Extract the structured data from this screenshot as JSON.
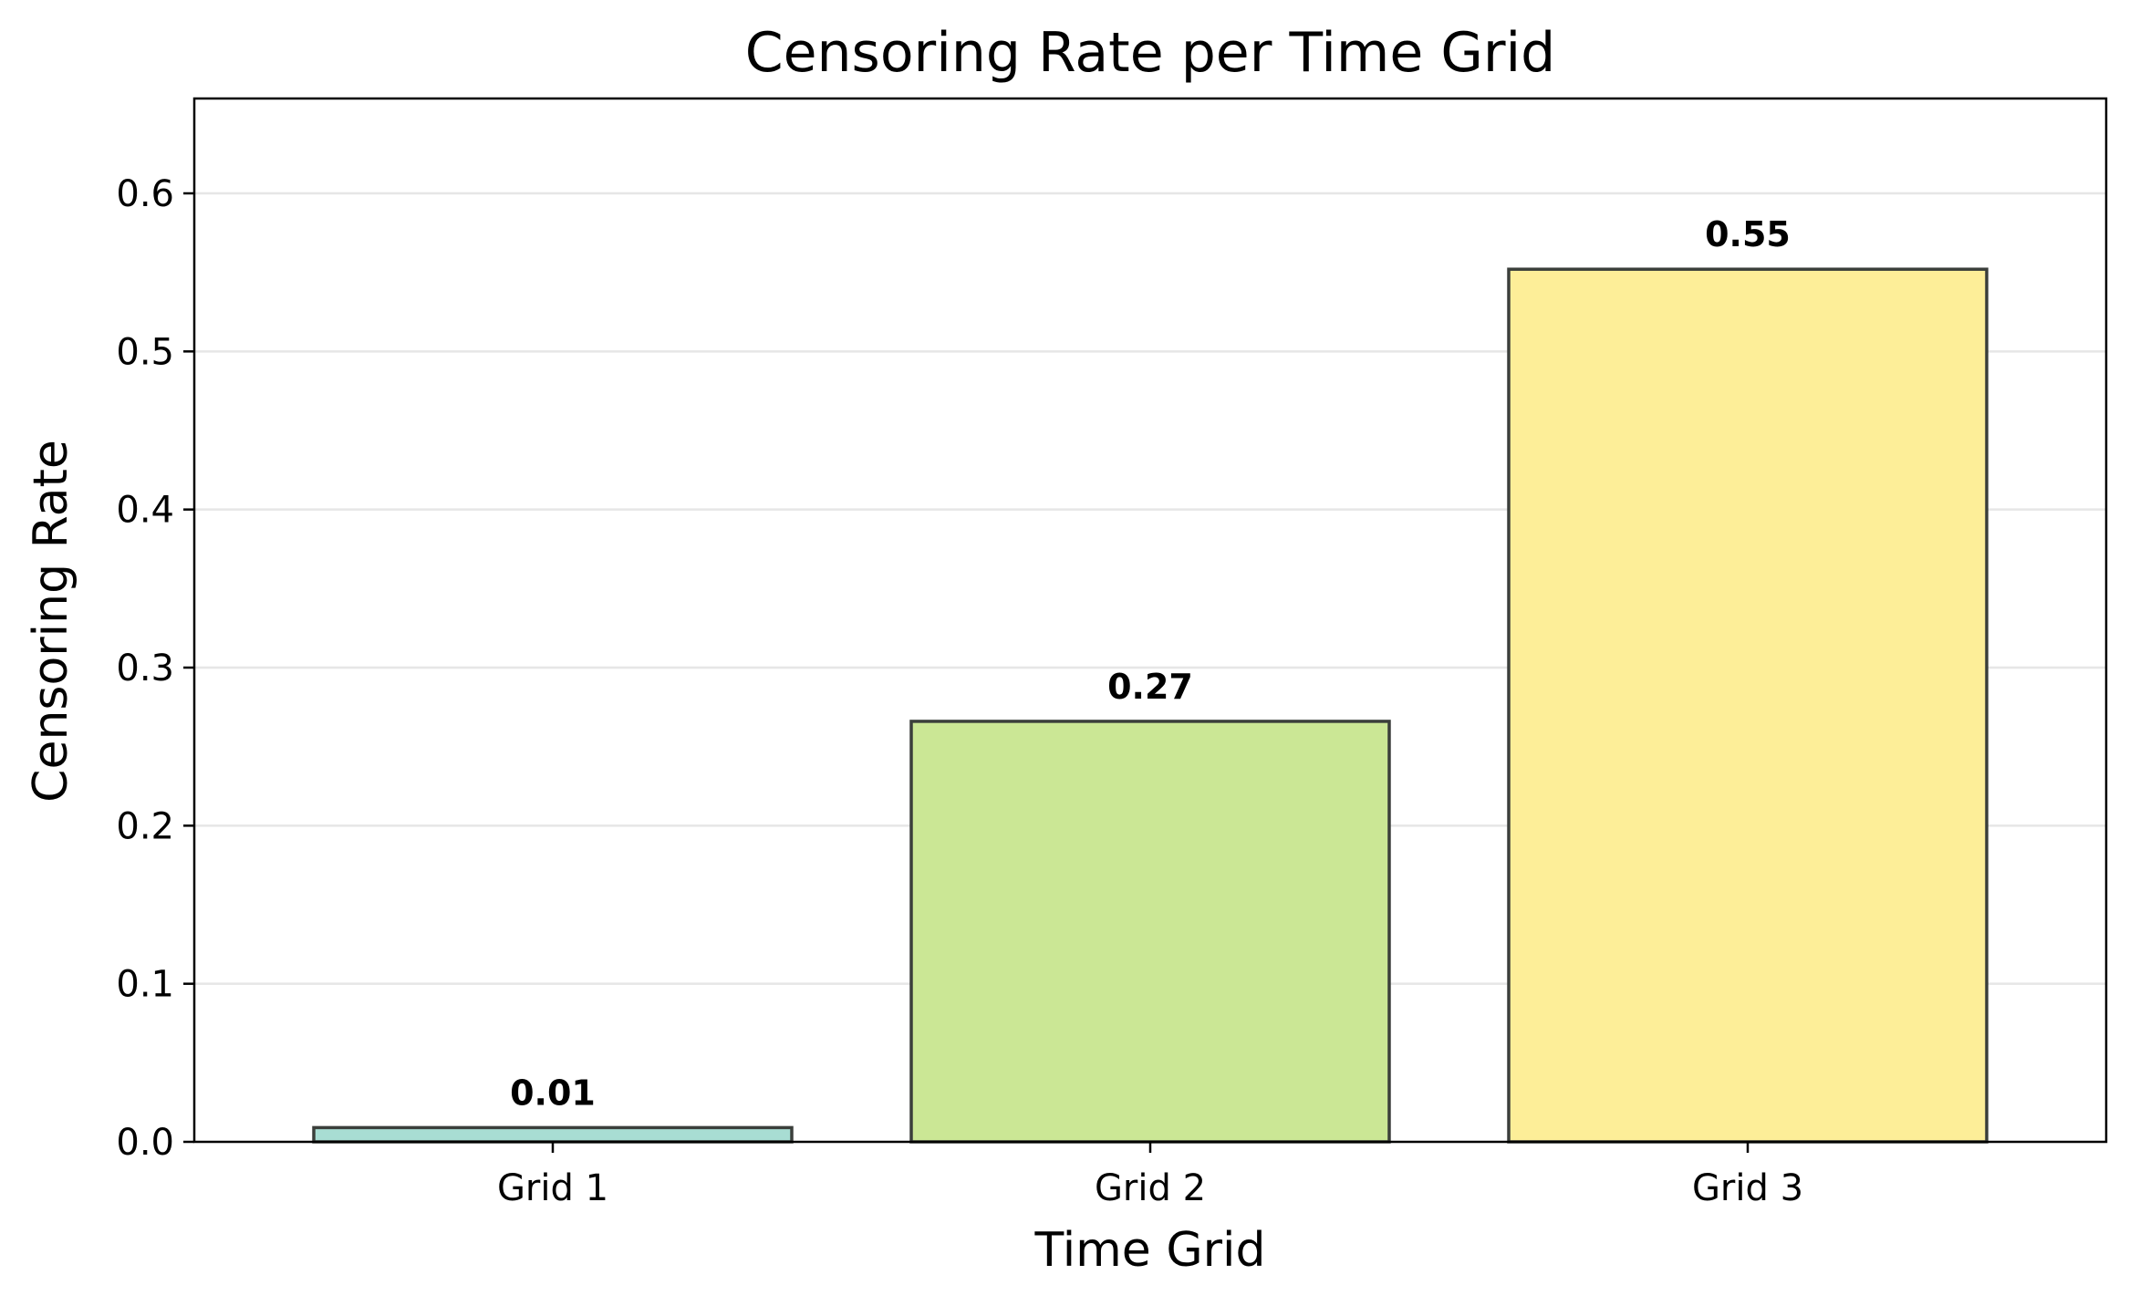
{
  "chart_data": {
    "type": "bar",
    "title": "Censoring Rate per Time Grid",
    "xlabel": "Time Grid",
    "ylabel": "Censoring Rate",
    "categories": [
      "Grid 1",
      "Grid 2",
      "Grid 3"
    ],
    "values": [
      0.009,
      0.266,
      0.552
    ],
    "value_labels": [
      "0.01",
      "0.27",
      "0.55"
    ],
    "bar_colors": [
      "#a8ddd3",
      "#cbe795",
      "#fdee98"
    ],
    "edge_color": "#3b3f3b",
    "ylim": [
      0,
      0.66
    ],
    "yticks": [
      0.0,
      0.1,
      0.2,
      0.3,
      0.4,
      0.5,
      0.6
    ],
    "ytick_labels": [
      "0.0",
      "0.1",
      "0.2",
      "0.3",
      "0.4",
      "0.5",
      "0.6"
    ],
    "grid": "horizontal",
    "legend": "none"
  }
}
